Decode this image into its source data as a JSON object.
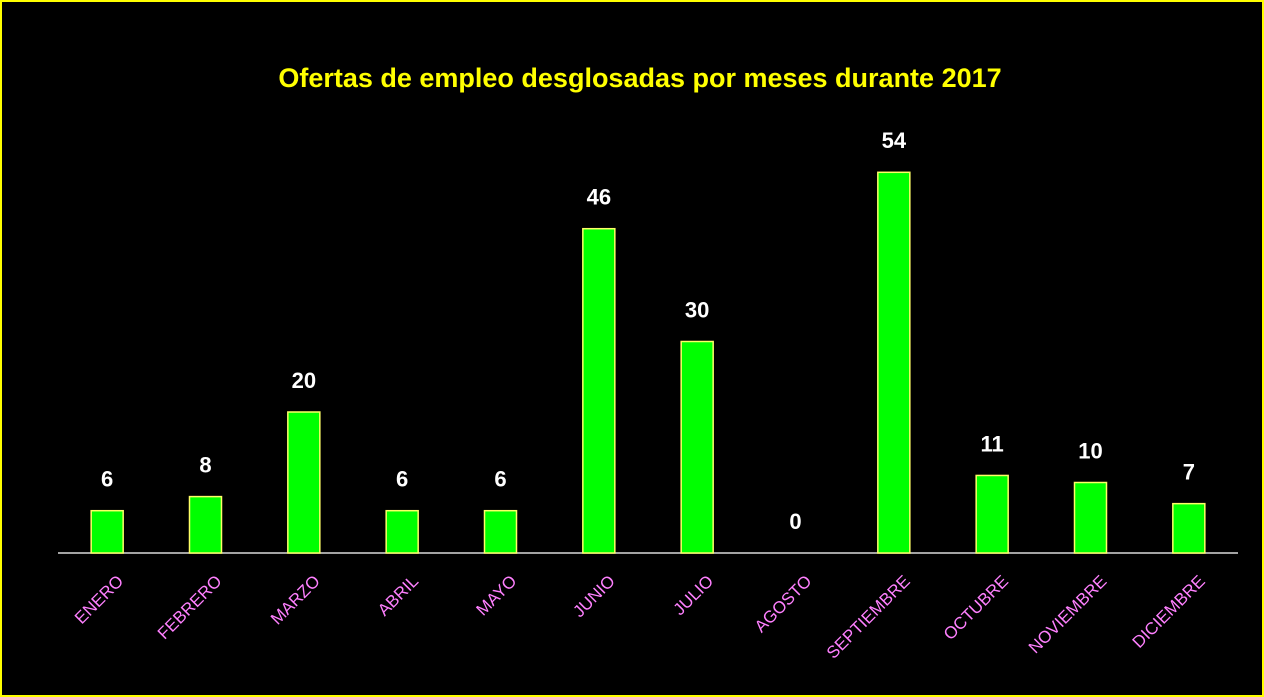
{
  "chart_data": {
    "type": "bar",
    "title": "Ofertas de empleo desglosadas por meses durante 2017",
    "categories": [
      "ENERO",
      "FEBRERO",
      "MARZO",
      "ABRIL",
      "MAYO",
      "JUNIO",
      "JULIO",
      "AGOSTO",
      "SEPTIEMBRE",
      "OCTUBRE",
      "NOVIEMBRE",
      "DICIEMBRE"
    ],
    "values": [
      6,
      8,
      20,
      6,
      6,
      46,
      30,
      0,
      54,
      11,
      10,
      7
    ],
    "color": "#00ff00",
    "ylim": [
      0,
      60
    ]
  }
}
